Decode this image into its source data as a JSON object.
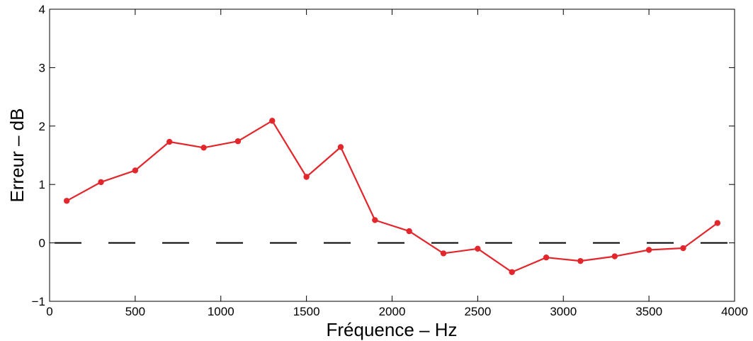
{
  "chart_data": {
    "type": "line",
    "title": "",
    "xlabel": "Fréquence  –  Hz",
    "ylabel": "Erreur  –  dB",
    "xlim": [
      0,
      4000
    ],
    "ylim": [
      -1,
      4
    ],
    "xticks": [
      0,
      500,
      1000,
      1500,
      2000,
      2500,
      3000,
      3500,
      4000
    ],
    "yticks": [
      -1,
      0,
      1,
      2,
      3,
      4
    ],
    "xtick_labels": [
      "0",
      "500",
      "1000",
      "1500",
      "2000",
      "2500",
      "3000",
      "3500",
      "4000"
    ],
    "ytick_labels": [
      "−1",
      "0",
      "1",
      "2",
      "3",
      "4"
    ],
    "grid": false,
    "series": [
      {
        "color": "#e3262b",
        "marker": "circle",
        "x": [
          100,
          300,
          500,
          700,
          900,
          1100,
          1300,
          1500,
          1700,
          1900,
          2100,
          2300,
          2500,
          2700,
          2900,
          3100,
          3300,
          3500,
          3700,
          3900
        ],
        "y": [
          0.72,
          1.04,
          1.24,
          1.73,
          1.63,
          1.74,
          2.09,
          1.13,
          1.64,
          0.39,
          0.2,
          -0.18,
          -0.1,
          -0.5,
          -0.25,
          -0.31,
          -0.23,
          -0.12,
          -0.09,
          0.34
        ]
      }
    ],
    "reference_line": {
      "y": 0,
      "style": "dashed",
      "color": "#000000"
    }
  }
}
